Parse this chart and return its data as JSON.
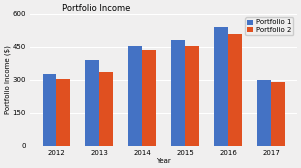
{
  "title": "Portfolio Income",
  "xlabel": "Year",
  "ylabel": "Portfolio Income ($)",
  "years": [
    "2012",
    "2013",
    "2014",
    "2015",
    "2016",
    "2017"
  ],
  "portfolio1": [
    325,
    390,
    455,
    480,
    540,
    300
  ],
  "portfolio2": [
    305,
    335,
    435,
    455,
    510,
    290
  ],
  "color1": "#4472C4",
  "color2": "#E05020",
  "ylim": [
    0,
    600
  ],
  "yticks": [
    0,
    150,
    300,
    450,
    600
  ],
  "legend_labels": [
    "Portfolio 1",
    "Portfolio 2"
  ],
  "bg_color": "#F0EFEF",
  "plot_bg": "#F0EFEF",
  "grid_color": "#FFFFFF",
  "title_fontsize": 6,
  "label_fontsize": 5,
  "tick_fontsize": 5,
  "legend_fontsize": 5,
  "bar_width": 0.32
}
